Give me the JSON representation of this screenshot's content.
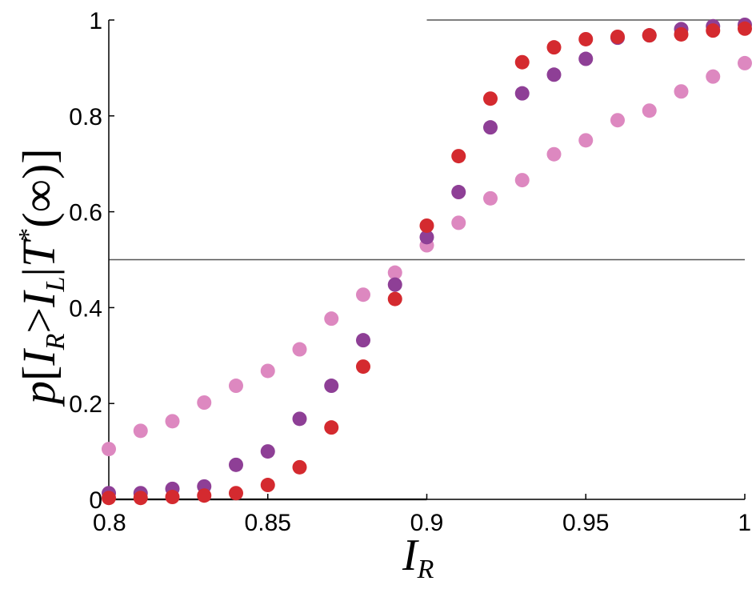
{
  "chart_data": {
    "type": "scatter",
    "xlabel": "I",
    "xlabel_sub": "R",
    "ylabel_parts": {
      "p": "p",
      "bracket_open": "[",
      "i1": "I",
      "sub1": "R",
      "gt": ">",
      "i2": "I",
      "sub2": "L",
      "bar": "|",
      "t": "T",
      "star": "*",
      "paren": "(∞)",
      "bracket_close": "]"
    },
    "xlim": [
      0.8,
      1.0
    ],
    "ylim": [
      0,
      1
    ],
    "x_ticks": [
      "0.8",
      "0.85",
      "0.9",
      "0.95",
      "1"
    ],
    "y_ticks": [
      "0",
      "0.2",
      "0.4",
      "0.6",
      "0.8",
      "1"
    ],
    "grid": false,
    "x": [
      0.8,
      0.81,
      0.82,
      0.83,
      0.84,
      0.85,
      0.86,
      0.87,
      0.88,
      0.89,
      0.9,
      0.91,
      0.92,
      0.93,
      0.94,
      0.95,
      0.96,
      0.97,
      0.98,
      0.99,
      1.0
    ],
    "series": [
      {
        "color": "#dd88c0",
        "values": [
          0.105,
          0.143,
          0.163,
          0.202,
          0.237,
          0.268,
          0.313,
          0.377,
          0.427,
          0.473,
          0.53,
          0.577,
          0.628,
          0.666,
          0.72,
          0.749,
          0.791,
          0.811,
          0.851,
          0.882,
          0.91
        ]
      },
      {
        "color": "#8e3f96",
        "values": [
          0.013,
          0.013,
          0.022,
          0.027,
          0.072,
          0.1,
          0.168,
          0.237,
          0.332,
          0.448,
          0.547,
          0.641,
          0.776,
          0.847,
          0.886,
          0.919,
          0.963,
          0.968,
          0.981,
          0.987,
          0.99
        ]
      },
      {
        "color": "#d42a2f",
        "values": [
          0.003,
          0.003,
          0.005,
          0.008,
          0.013,
          0.03,
          0.067,
          0.15,
          0.277,
          0.418,
          0.571,
          0.716,
          0.836,
          0.912,
          0.943,
          0.96,
          0.965,
          0.968,
          0.97,
          0.978,
          0.982
        ]
      }
    ],
    "reference_lines": [
      {
        "y": 0.5,
        "x_from": 0.8,
        "x_to": 1.0
      },
      {
        "y": 1.0,
        "x_from": 0.9,
        "x_to": 1.0
      },
      {
        "y": 0.0,
        "x_from": 0.8,
        "x_to": 0.9
      }
    ]
  }
}
